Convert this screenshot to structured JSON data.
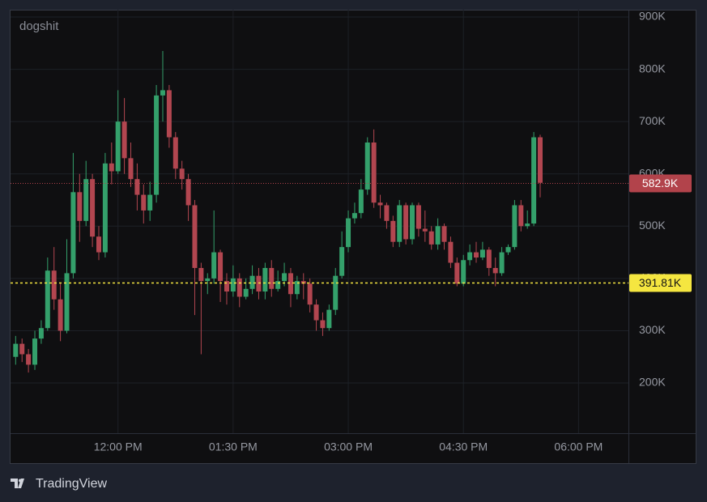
{
  "chart_data": {
    "type": "candlestick",
    "title": "dogshit",
    "x": [
      640,
      645,
      650,
      655,
      660,
      665,
      670,
      675,
      680,
      685,
      690,
      695,
      700,
      705,
      710,
      715,
      720,
      725,
      730,
      735,
      740,
      745,
      750,
      755,
      760,
      765,
      770,
      775,
      780,
      785,
      790,
      795,
      800,
      805,
      810,
      815,
      820,
      825,
      830,
      835,
      840,
      845,
      850,
      855,
      860,
      865,
      870,
      875,
      880,
      885,
      890,
      895,
      900,
      905,
      910,
      915,
      920,
      925,
      930,
      935,
      940,
      945,
      950,
      955,
      960,
      965,
      970,
      975,
      980,
      985,
      990,
      995,
      1000,
      1005,
      1010,
      1015,
      1020,
      1025,
      1030,
      1035,
      1040,
      1045,
      1050
    ],
    "open": [
      250000,
      275000,
      255000,
      235000,
      285000,
      305000,
      415000,
      360000,
      300000,
      410000,
      565000,
      510000,
      590000,
      480000,
      450000,
      620000,
      605000,
      700000,
      630000,
      590000,
      560000,
      530000,
      560000,
      750000,
      760000,
      670000,
      610000,
      590000,
      540000,
      420000,
      395000,
      400000,
      450000,
      395000,
      375000,
      400000,
      365000,
      380000,
      405000,
      375000,
      420000,
      380000,
      395000,
      410000,
      370000,
      395000,
      390000,
      350000,
      320000,
      305000,
      340000,
      405000,
      460000,
      515000,
      525000,
      570000,
      660000,
      545000,
      540000,
      510000,
      470000,
      540000,
      475000,
      540000,
      495000,
      490000,
      465000,
      500000,
      470000,
      430000,
      390000,
      435000,
      450000,
      440000,
      455000,
      420000,
      410000,
      450000,
      460000,
      540000,
      500000,
      505000,
      670000
    ],
    "high": [
      290000,
      285000,
      265000,
      300000,
      320000,
      440000,
      460000,
      390000,
      475000,
      640000,
      600000,
      625000,
      600000,
      500000,
      640000,
      660000,
      760000,
      745000,
      660000,
      620000,
      580000,
      585000,
      770000,
      835000,
      770000,
      680000,
      625000,
      600000,
      550000,
      430000,
      410000,
      530000,
      455000,
      410000,
      425000,
      410000,
      400000,
      425000,
      420000,
      430000,
      435000,
      415000,
      430000,
      420000,
      405000,
      410000,
      400000,
      360000,
      335000,
      350000,
      420000,
      490000,
      530000,
      545000,
      590000,
      670000,
      685000,
      560000,
      545000,
      520000,
      550000,
      545000,
      545000,
      545000,
      530000,
      500000,
      515000,
      505000,
      480000,
      440000,
      445000,
      465000,
      470000,
      470000,
      460000,
      440000,
      460000,
      465000,
      550000,
      550000,
      530000,
      680000,
      675000
    ],
    "low": [
      235000,
      240000,
      220000,
      225000,
      275000,
      300000,
      340000,
      280000,
      295000,
      400000,
      470000,
      500000,
      460000,
      435000,
      440000,
      580000,
      600000,
      600000,
      575000,
      530000,
      505000,
      510000,
      545000,
      700000,
      650000,
      590000,
      570000,
      510000,
      330000,
      255000,
      370000,
      390000,
      355000,
      350000,
      365000,
      345000,
      360000,
      370000,
      360000,
      360000,
      365000,
      375000,
      385000,
      345000,
      360000,
      360000,
      335000,
      300000,
      290000,
      300000,
      330000,
      400000,
      450000,
      505000,
      515000,
      560000,
      535000,
      515000,
      495000,
      460000,
      460000,
      465000,
      465000,
      480000,
      470000,
      455000,
      455000,
      455000,
      420000,
      385000,
      385000,
      425000,
      430000,
      435000,
      405000,
      385000,
      405000,
      445000,
      455000,
      490000,
      495000,
      500000,
      555000
    ],
    "close": [
      275000,
      255000,
      235000,
      285000,
      305000,
      415000,
      360000,
      300000,
      410000,
      565000,
      510000,
      590000,
      480000,
      450000,
      620000,
      605000,
      700000,
      630000,
      590000,
      560000,
      530000,
      560000,
      750000,
      760000,
      670000,
      610000,
      590000,
      540000,
      420000,
      395000,
      400000,
      450000,
      395000,
      375000,
      400000,
      365000,
      380000,
      405000,
      375000,
      420000,
      380000,
      395000,
      410000,
      370000,
      395000,
      390000,
      350000,
      320000,
      305000,
      340000,
      405000,
      460000,
      515000,
      525000,
      570000,
      660000,
      545000,
      540000,
      510000,
      470000,
      540000,
      475000,
      540000,
      495000,
      490000,
      465000,
      500000,
      470000,
      430000,
      390000,
      435000,
      450000,
      440000,
      455000,
      420000,
      410000,
      450000,
      460000,
      540000,
      500000,
      505000,
      670000,
      582900
    ],
    "up_color": "#34a06b",
    "down_color": "#b24650",
    "xlim": [
      636,
      1119
    ],
    "xticks": [
      {
        "value": 720,
        "label": "12:00 PM"
      },
      {
        "value": 810,
        "label": "01:30 PM"
      },
      {
        "value": 900,
        "label": "03:00 PM"
      },
      {
        "value": 990,
        "label": "04:30 PM"
      },
      {
        "value": 1080,
        "label": "06:00 PM"
      }
    ],
    "ylim": [
      104000,
      914000
    ],
    "yticks": [
      {
        "value": 200000,
        "label": "200K"
      },
      {
        "value": 300000,
        "label": "300K"
      },
      {
        "value": 400000,
        "label": "400K"
      },
      {
        "value": 500000,
        "label": "500K"
      },
      {
        "value": 600000,
        "label": "600K"
      },
      {
        "value": 700000,
        "label": "700K"
      },
      {
        "value": 800000,
        "label": "800K"
      },
      {
        "value": 900000,
        "label": "900K"
      }
    ],
    "grid": true,
    "price_lines": [
      {
        "value": 582900,
        "label": "582.9K",
        "color": "#b2434b",
        "style": "dotted"
      },
      {
        "value": 391810,
        "label": "391.81K",
        "color": "#f5e640",
        "style": "dashed"
      }
    ]
  },
  "brand": "TradingView"
}
